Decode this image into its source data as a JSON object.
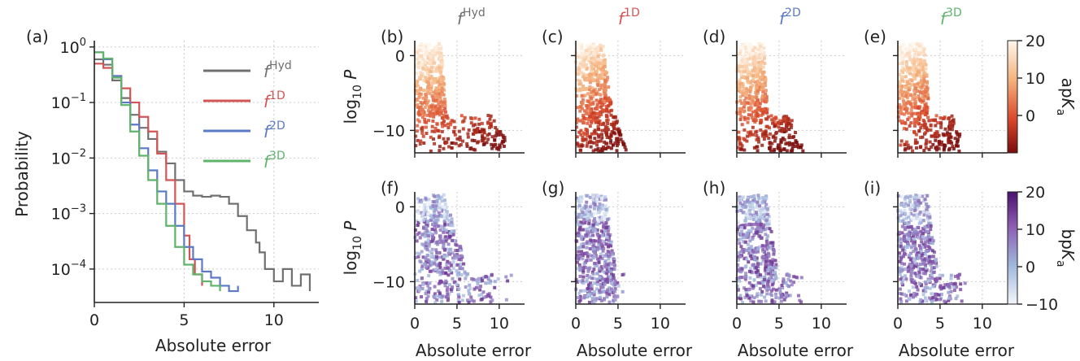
{
  "colors": {
    "hyd": "#707070",
    "d1": "#d45555",
    "d2": "#5b79c4",
    "d3": "#5fb36a"
  },
  "chart_data": [
    {
      "panel": "(a)",
      "type": "line",
      "xlabel": "Absolute error",
      "ylabel": "Probability",
      "yscale": "log",
      "xlim": [
        0,
        12.5
      ],
      "ylim": [
        2.5e-05,
        1.3
      ],
      "xticks": [
        0,
        5,
        10
      ],
      "yticks": [
        {
          "value": 1,
          "base": "10",
          "exp": "0"
        },
        {
          "value": 0.1,
          "base": "10",
          "exp": "−1"
        },
        {
          "value": 0.01,
          "base": "10",
          "exp": "−2"
        },
        {
          "value": 0.001,
          "base": "10",
          "exp": "−3"
        },
        {
          "value": 0.0001,
          "base": "10",
          "exp": "−4"
        }
      ],
      "grid": true,
      "legend_position": "top-right",
      "series": [
        {
          "key": "hyd",
          "name_base": "f",
          "name_sup": "Hyd",
          "x": [
            0,
            0.5,
            1,
            1.5,
            2,
            2.5,
            3,
            3.5,
            4,
            4.5,
            5,
            5.5,
            6,
            6.5,
            7,
            7.5,
            8,
            8.5,
            9,
            9.2,
            9.5,
            10,
            10.5,
            11,
            11.5,
            12
          ],
          "y": [
            0.6,
            0.48,
            0.25,
            0.12,
            0.06,
            0.035,
            0.022,
            0.013,
            0.008,
            0.004,
            0.0025,
            0.0021,
            0.002,
            0.0021,
            0.002,
            0.0015,
            0.0009,
            0.0005,
            0.0003,
            0.0002,
            0.0001,
            6e-05,
            0.0001,
            5e-05,
            8e-05,
            4e-05
          ]
        },
        {
          "key": "d1",
          "name_base": "f",
          "name_sup": "1D",
          "x": [
            0,
            0.5,
            1,
            1.5,
            2,
            2.5,
            3,
            3.5,
            4,
            4.5,
            5,
            5.3,
            5.6,
            6
          ],
          "y": [
            0.5,
            0.42,
            0.3,
            0.18,
            0.1,
            0.055,
            0.03,
            0.012,
            0.004,
            0.0015,
            0.0004,
            0.00015,
            8e-05,
            5e-05
          ]
        },
        {
          "key": "d2",
          "name_base": "f",
          "name_sup": "2D",
          "x": [
            0,
            0.5,
            1,
            1.5,
            2,
            2.5,
            3,
            3.5,
            4,
            4.5,
            5,
            5.5,
            6,
            6.5,
            7,
            7.5,
            8
          ],
          "y": [
            0.8,
            0.6,
            0.3,
            0.1,
            0.04,
            0.015,
            0.006,
            0.0025,
            0.0015,
            0.0006,
            0.00025,
            0.00015,
            9e-05,
            7e-05,
            5e-05,
            4e-05,
            5e-05
          ]
        },
        {
          "key": "d3",
          "name_base": "f",
          "name_sup": "3D",
          "x": [
            0,
            0.5,
            1,
            1.5,
            2,
            2.5,
            3,
            3.5,
            4,
            4.5,
            5,
            5.5,
            6,
            6.5,
            7
          ],
          "y": [
            0.8,
            0.62,
            0.28,
            0.09,
            0.03,
            0.011,
            0.004,
            0.0015,
            0.0006,
            0.00025,
            0.00012,
            8e-05,
            6e-05,
            5e-05,
            4e-05
          ]
        }
      ]
    },
    {
      "type": "scatter",
      "description": "2x4 grid of scatter density panels",
      "xlabel": "Absolute error",
      "ylabel_base": "log",
      "ylabel_sub": "10",
      "ylabel_var": "P",
      "xlim": [
        0,
        13
      ],
      "ylim": [
        -13,
        2
      ],
      "xticks": [
        0,
        5,
        10
      ],
      "yticks": [
        0,
        -10
      ],
      "ytick_labels": [
        "0",
        "−10"
      ],
      "column_titles": [
        {
          "key": "hyd",
          "base": "f",
          "sup": "Hyd"
        },
        {
          "key": "d1",
          "base": "f",
          "sup": "1D"
        },
        {
          "key": "d2",
          "base": "f",
          "sup": "2D"
        },
        {
          "key": "d3",
          "base": "f",
          "sup": "3D"
        }
      ],
      "rows": [
        {
          "labels": [
            "(b)",
            "(c)",
            "(d)",
            "(e)"
          ],
          "cmap": "orange",
          "colorbar": {
            "label_prefix": "ap",
            "label_var": "K",
            "label_sub": "a",
            "range": [
              -10,
              20
            ],
            "ticks": [
              20,
              10,
              0
            ]
          },
          "xmax": [
            11.8,
            6,
            8,
            8.2
          ]
        },
        {
          "labels": [
            "(f)",
            "(g)",
            "(h)",
            "(i)"
          ],
          "cmap": "purple",
          "colorbar": {
            "label_prefix": "bp",
            "label_var": "K",
            "label_sub": "a",
            "range": [
              -10,
              20
            ],
            "ticks": [
              20,
              10,
              0,
              -10
            ],
            "tick_labels": [
              "20",
              "10",
              "0",
              "−10"
            ]
          },
          "xmax": [
            11.8,
            6,
            8,
            8.2
          ]
        }
      ]
    }
  ]
}
